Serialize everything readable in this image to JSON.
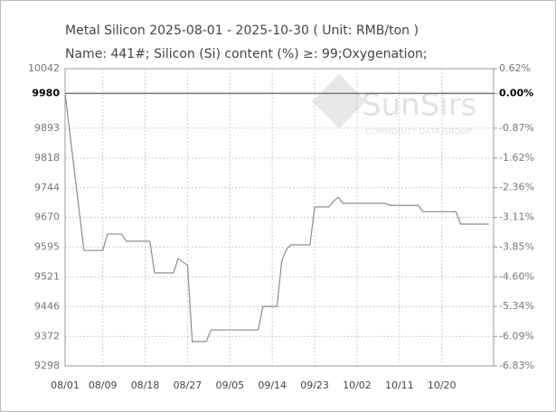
{
  "chart_data": {
    "type": "line",
    "title": "Metal Silicon 2025-08-01 - 2025-10-30    ( Unit: RMB/ton )",
    "subtitle": "Name: 441#; Silicon (Si) content (%) ≥: 99;Oxygenation;",
    "watermark": {
      "brand": "SunSirs",
      "tagline": "COMMODITY DATA GROUP"
    },
    "x": [
      "08/01",
      "08/05",
      "08/09",
      "08/10",
      "08/13",
      "08/14",
      "08/19",
      "08/20",
      "08/24",
      "08/25",
      "08/27",
      "08/28",
      "08/31",
      "09/01",
      "09/11",
      "09/12",
      "09/15",
      "09/16",
      "09/17",
      "09/18",
      "09/22",
      "09/23",
      "09/26",
      "09/27",
      "09/28",
      "09/29",
      "10/08",
      "10/09",
      "10/15",
      "10/16",
      "10/23",
      "10/24",
      "10/30"
    ],
    "series": [
      {
        "name": "Metal Silicon",
        "color": "#8c8c8c",
        "values": [
          9980,
          9587,
          9587,
          9628,
          9628,
          9610,
          9610,
          9531,
          9531,
          9567,
          9550,
          9359,
          9359,
          9388,
          9388,
          9447,
          9447,
          9560,
          9590,
          9601,
          9601,
          9696,
          9696,
          9710,
          9720,
          9705,
          9705,
          9700,
          9700,
          9684,
          9684,
          9653,
          9653
        ]
      }
    ],
    "xlim": [
      "08/01",
      "10/31"
    ],
    "xticks": [
      "08/01",
      "08/09",
      "08/18",
      "08/27",
      "09/05",
      "09/14",
      "09/23",
      "10/02",
      "10/11",
      "10/20"
    ],
    "ylim": [
      9298,
      10042
    ],
    "yticks": [
      10042,
      9980,
      9893,
      9818,
      9744,
      9670,
      9595,
      9521,
      9446,
      9372,
      9298
    ],
    "y2lim": [
      -6.83,
      0.62
    ],
    "y2ticks": [
      {
        "value": 0.62,
        "label": "0.62%"
      },
      {
        "value": 0,
        "label": "0.00%"
      },
      {
        "value": -0.87,
        "label": "-0.87%"
      },
      {
        "value": -1.62,
        "label": "-1.62%"
      },
      {
        "value": -2.36,
        "label": "-2.36%"
      },
      {
        "value": -3.11,
        "label": "-3.11%"
      },
      {
        "value": -3.85,
        "label": "-3.85%"
      },
      {
        "value": -4.6,
        "label": "-4.60%"
      },
      {
        "value": -5.34,
        "label": "-5.34%"
      },
      {
        "value": -6.09,
        "label": "-6.09%"
      },
      {
        "value": -6.83,
        "label": "-6.83%"
      }
    ],
    "reference_line": 9980,
    "grid": true
  }
}
